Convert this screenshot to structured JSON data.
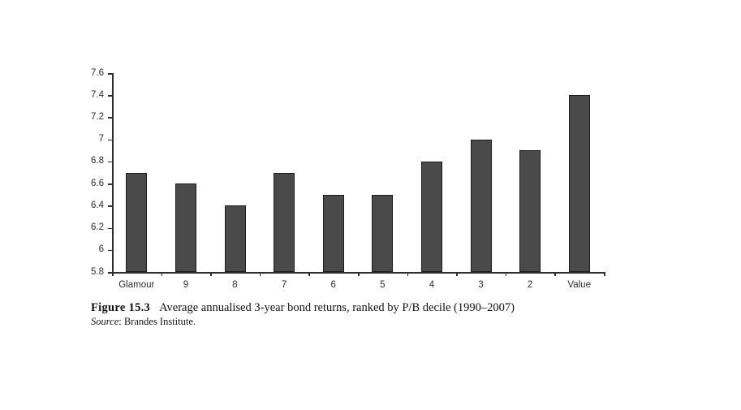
{
  "chart_data": {
    "type": "bar",
    "title": "",
    "xlabel": "",
    "ylabel": "",
    "categories": [
      "Glamour",
      "9",
      "8",
      "7",
      "6",
      "5",
      "4",
      "3",
      "2",
      "Value"
    ],
    "values": [
      6.7,
      6.6,
      6.4,
      6.7,
      6.5,
      6.5,
      6.8,
      7.0,
      6.9,
      7.4
    ],
    "ylim": [
      5.8,
      7.6
    ],
    "ytick_values": [
      7.6,
      7.4,
      7.2,
      7.0,
      6.8,
      6.6,
      6.4,
      6.2,
      6.0,
      5.8
    ],
    "ytick_labels": [
      "7.6",
      "7.4",
      "7.2",
      "7",
      "6.8",
      "6.6",
      "6.4",
      "6.2",
      "6",
      "5.8"
    ],
    "grid": false,
    "legend": false,
    "bar_color": "#4a4a4a",
    "bar_border_color": "#1c1c1c",
    "axis_color": "#2e2e2e"
  },
  "caption": {
    "figure_label": "Figure 15.3",
    "title": "Average annualised 3-year bond returns, ranked by P/B decile (1990–2007)",
    "source_label": "Source",
    "source_text": ": Brandes Institute."
  }
}
